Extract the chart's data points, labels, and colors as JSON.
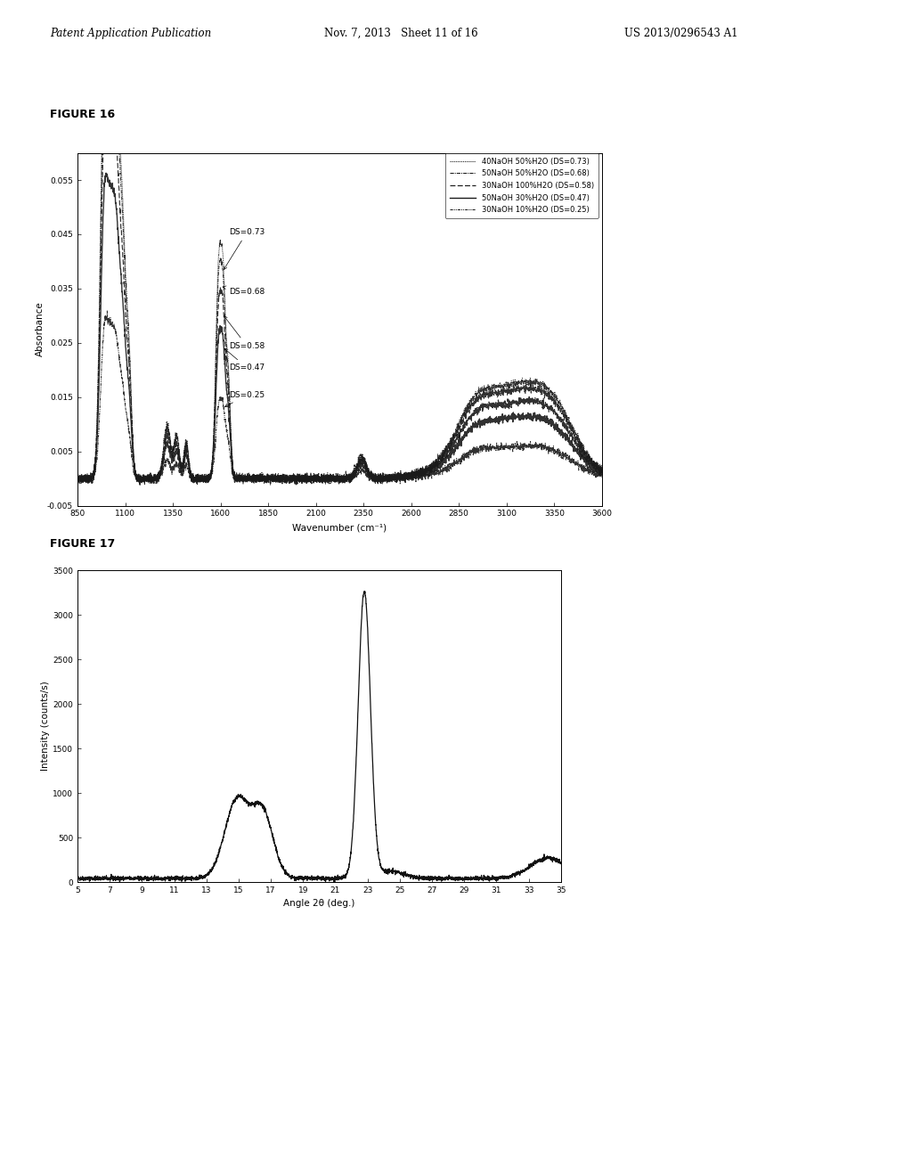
{
  "header_left": "Patent Application Publication",
  "header_center": "Nov. 7, 2013   Sheet 11 of 16",
  "header_right": "US 2013/0296543 A1",
  "fig16_title": "FIGURE 16",
  "fig17_title": "FIGURE 17",
  "fig16_xlabel": "Wavenumber (cm⁻¹)",
  "fig16_ylabel": "Absorbance",
  "fig16_xlim": [
    850,
    3600
  ],
  "fig16_ylim": [
    -0.005,
    0.06
  ],
  "fig16_xticks": [
    850,
    1100,
    1350,
    1600,
    1850,
    2100,
    2350,
    2600,
    2850,
    3100,
    3350,
    3600
  ],
  "fig16_ytick_vals": [
    -0.005,
    0.005,
    0.015,
    0.025,
    0.035,
    0.045,
    0.055
  ],
  "fig16_ytick_labels": [
    "-0.005",
    "0.005",
    "0.015",
    "0.025",
    "0.035",
    "0.045",
    "0.055"
  ],
  "fig17_xlabel": "Angle 2θ (deg.)",
  "fig17_ylabel": "Intensity (counts/s)",
  "fig17_xlim": [
    5,
    35
  ],
  "fig17_ylim": [
    0,
    3500
  ],
  "fig17_xticks": [
    5,
    7,
    9,
    11,
    13,
    15,
    17,
    19,
    21,
    23,
    25,
    27,
    29,
    31,
    33,
    35
  ],
  "fig17_yticks": [
    0,
    500,
    1000,
    1500,
    2000,
    2500,
    3000,
    3500
  ],
  "legend_labels": [
    "40NaOH 50%H2O (DS=0.73)",
    "50NaOH 50%H2O (DS=0.68)",
    "30NaOH 100%H2O (DS=0.58)",
    "50NaOH 30%H2O (DS=0.47)",
    "30NaOH 10%H2O (DS=0.25)"
  ],
  "ds_annotations": [
    "DS=0.73",
    "DS=0.68",
    "DS=0.58",
    "DS=0.47",
    "DS=0.25"
  ],
  "background_color": "#ffffff"
}
